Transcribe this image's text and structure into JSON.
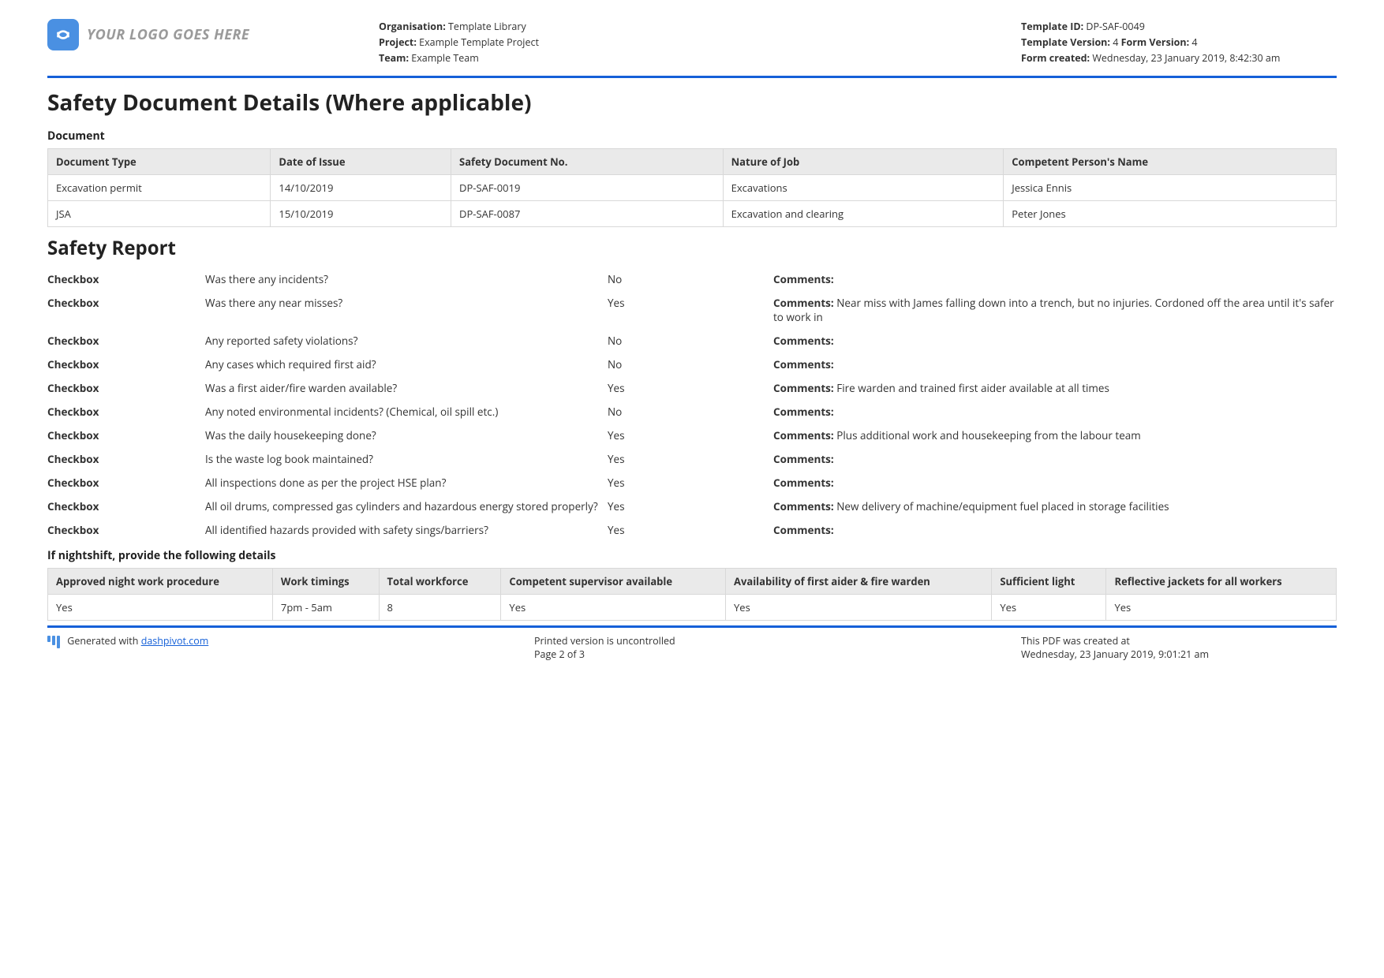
{
  "header": {
    "logo_text": "YOUR LOGO GOES HERE",
    "col1": {
      "org_label": "Organisation:",
      "org_value": " Template Library",
      "proj_label": "Project:",
      "proj_value": " Example Template Project",
      "team_label": "Team:",
      "team_value": " Example Team"
    },
    "col2": {
      "tid_label": "Template ID:",
      "tid_value": " DP-SAF-0049",
      "tv_label": "Template Version:",
      "tv_value": " 4 ",
      "fv_label": "Form Version:",
      "fv_value": " 4",
      "fc_label": "Form created:",
      "fc_value": " Wednesday, 23 January 2019, 8:42:30 am"
    }
  },
  "section1_title": "Safety Document Details (Where applicable)",
  "doc_label": "Document",
  "doc_table": {
    "columns": [
      "Document Type",
      "Date of Issue",
      "Safety Document No.",
      "Nature of Job",
      "Competent Person's Name"
    ],
    "rows": [
      [
        "Excavation permit",
        "14/10/2019",
        "DP-SAF-0019",
        "Excavations",
        "Jessica Ennis"
      ],
      [
        "JSA",
        "15/10/2019",
        "DP-SAF-0087",
        "Excavation and clearing",
        "Peter Jones"
      ]
    ]
  },
  "section2_title": "Safety Report",
  "checkbox_label": "Checkbox",
  "comments_label": "Comments:",
  "report_rows": [
    {
      "q": "Was there any incidents?",
      "a": "No",
      "c": ""
    },
    {
      "q": "Was there any near misses?",
      "a": "Yes",
      "c": " Near miss with James falling down into a trench, but no injuries. Cordoned off the area until it's safer to work in"
    },
    {
      "q": "Any reported safety violations?",
      "a": "No",
      "c": ""
    },
    {
      "q": "Any cases which required first aid?",
      "a": "No",
      "c": ""
    },
    {
      "q": "Was a first aider/fire warden available?",
      "a": "Yes",
      "c": " Fire warden and trained first aider available at all times"
    },
    {
      "q": "Any noted environmental incidents? (Chemical, oil spill etc.)",
      "a": "No",
      "c": ""
    },
    {
      "q": "Was the daily housekeeping done?",
      "a": "Yes",
      "c": " Plus additional work and housekeeping from the labour team"
    },
    {
      "q": "Is the waste log book maintained?",
      "a": "Yes",
      "c": ""
    },
    {
      "q": "All inspections done as per the project HSE plan?",
      "a": "Yes",
      "c": ""
    },
    {
      "q": "All oil drums, compressed gas cylinders and hazardous energy stored properly?",
      "a": "Yes",
      "c": " New delivery of machine/equipment fuel placed in storage facilities"
    },
    {
      "q": "All identified hazards provided with safety sings/barriers?",
      "a": "Yes",
      "c": ""
    }
  ],
  "night_label": "If nightshift, provide the following details",
  "night_table": {
    "columns": [
      "Approved night work procedure",
      "Work timings",
      "Total workforce",
      "Competent supervisor available",
      "Availability of first aider & fire warden",
      "Sufficient light",
      "Reflective jackets for all workers"
    ],
    "rows": [
      [
        "Yes",
        "7pm - 5am",
        "8",
        "Yes",
        "Yes",
        "Yes",
        "Yes"
      ]
    ]
  },
  "footer": {
    "gen_prefix": "Generated with ",
    "gen_link": "dashpivot.com",
    "mid1": "Printed version is uncontrolled",
    "mid2": "Page 2 of 3",
    "right1": "This PDF was created at",
    "right2": "Wednesday, 23 January 2019, 9:01:21 am"
  }
}
